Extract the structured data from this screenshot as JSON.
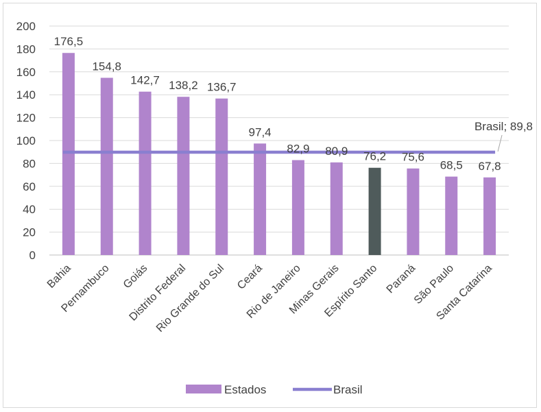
{
  "chart_data": {
    "type": "bar",
    "categories": [
      "Bahia",
      "Pernambuco",
      "Goiás",
      "Distrito Federal",
      "Rio Grande do Sul",
      "Ceará",
      "Rio de Janeiro",
      "Minas Gerais",
      "Espírito Santo",
      "Paraná",
      "São Paulo",
      "Santa Catarina"
    ],
    "series": [
      {
        "name": "Estados",
        "type": "bar",
        "values": [
          176.5,
          154.8,
          142.7,
          138.2,
          136.7,
          97.4,
          82.9,
          80.9,
          76.2,
          75.6,
          68.5,
          67.8
        ],
        "value_labels": [
          "176,5",
          "154,8",
          "142,7",
          "138,2",
          "136,7",
          "97,4",
          "82,9",
          "80,9",
          "76,2",
          "75,6",
          "68,5",
          "67,8"
        ],
        "color": "#b084cc",
        "highlight_category": "Espírito Santo",
        "highlight_color": "#4f5b5b"
      },
      {
        "name": "Brasil",
        "type": "line",
        "value": 89.8,
        "color": "#8a7fd0",
        "annotation": "Brasil; 89,8"
      }
    ],
    "y_ticks": [
      "0",
      "20",
      "40",
      "60",
      "80",
      "100",
      "120",
      "140",
      "160",
      "180",
      "200"
    ],
    "ylim": [
      0,
      200
    ],
    "grid": true,
    "legend_position": "bottom"
  }
}
